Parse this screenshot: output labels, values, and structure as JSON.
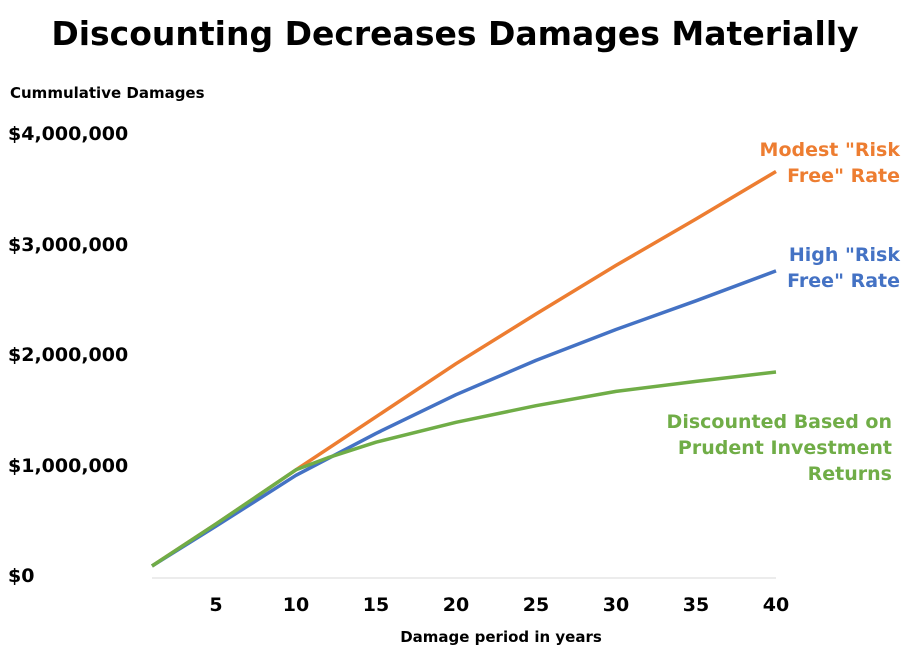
{
  "chart_data": {
    "type": "line",
    "title": "Discounting Decreases Damages Materially",
    "ylabel": "Cummulative Damages",
    "xlabel": "Damage period in years",
    "xlim": [
      1,
      40
    ],
    "ylim": [
      0,
      4000000
    ],
    "x_ticks": [
      "5",
      "10",
      "15",
      "20",
      "25",
      "30",
      "35",
      "40"
    ],
    "y_ticks": [
      "$0",
      "$1,000,000",
      "$2,000,000",
      "$3,000,000",
      "$4,000,000"
    ],
    "grid": false,
    "series": [
      {
        "name": "Modest \"Risk Free\" Rate",
        "color": "#ED7D31",
        "x": [
          1,
          5,
          10,
          15,
          20,
          25,
          30,
          35,
          40
        ],
        "values": [
          100000,
          480000,
          970000,
          1450000,
          1930000,
          2380000,
          2820000,
          3240000,
          3670000
        ]
      },
      {
        "name": "High \"Risk Free\" Rate",
        "color": "#4472C4",
        "x": [
          1,
          5,
          10,
          15,
          20,
          25,
          30,
          35,
          40
        ],
        "values": [
          100000,
          460000,
          920000,
          1300000,
          1650000,
          1960000,
          2240000,
          2500000,
          2770000
        ]
      },
      {
        "name": "Discounted Based on Prudent Investment Returns",
        "color": "#70AD47",
        "x": [
          1,
          5,
          10,
          12,
          15,
          20,
          25,
          30,
          35,
          40
        ],
        "values": [
          100000,
          480000,
          970000,
          1080000,
          1220000,
          1400000,
          1550000,
          1680000,
          1770000,
          1855000
        ]
      }
    ],
    "annotations": [
      "Modest \"Risk\nFree\" Rate",
      "High \"Risk\nFree\" Rate",
      "Discounted Based on\nPrudent Investment\nReturns"
    ]
  }
}
